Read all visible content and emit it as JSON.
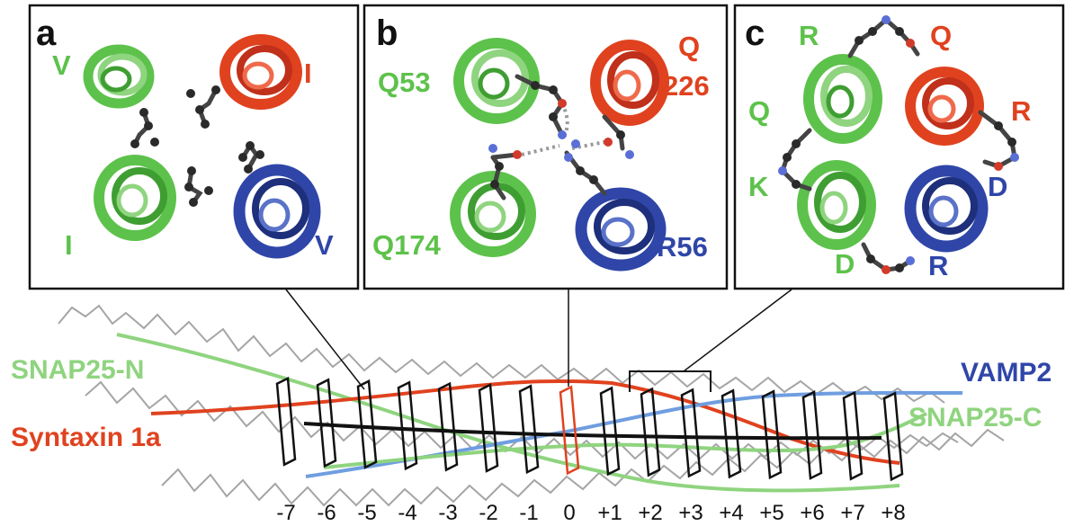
{
  "colors": {
    "snap25": "#5dc24b",
    "snap25_light": "#8fd47f",
    "syntaxin": "#e0421f",
    "vamp2": "#2f46a8",
    "vamp2_light": "#6f9ee0",
    "backbone": "#a5a5a5",
    "layer": "#111111"
  },
  "panels": [
    {
      "letter": "a",
      "residues": [
        {
          "text": "V",
          "color": "snap25"
        },
        {
          "text": "I",
          "color": "syntaxin"
        },
        {
          "text": "I",
          "color": "snap25"
        },
        {
          "text": "V",
          "color": "vamp2"
        }
      ]
    },
    {
      "letter": "b",
      "residues": [
        {
          "text": "Q53",
          "color": "snap25"
        },
        {
          "text": "Q",
          "color": "syntaxin"
        },
        {
          "text": "226",
          "color": "syntaxin"
        },
        {
          "text": "Q174",
          "color": "snap25"
        },
        {
          "text": "R56",
          "color": "vamp2"
        }
      ]
    },
    {
      "letter": "c",
      "residues": [
        {
          "text": "R",
          "color": "snap25"
        },
        {
          "text": "Q",
          "color": "syntaxin"
        },
        {
          "text": "Q",
          "color": "snap25"
        },
        {
          "text": "R",
          "color": "syntaxin"
        },
        {
          "text": "K",
          "color": "snap25"
        },
        {
          "text": "D",
          "color": "vamp2"
        },
        {
          "text": "D",
          "color": "snap25"
        },
        {
          "text": "R",
          "color": "vamp2"
        }
      ]
    }
  ],
  "helix_labels": {
    "snap25_n": "SNAP25-N",
    "syntaxin": "Syntaxin 1a",
    "vamp2": "VAMP2",
    "snap25_c": "SNAP25-C"
  },
  "layers": [
    "-7",
    "-6",
    "-5",
    "-4",
    "-3",
    "-2",
    "-1",
    "0",
    "+1",
    "+2",
    "+3",
    "+4",
    "+5",
    "+6",
    "+7",
    "+8"
  ],
  "central_layer": "0"
}
